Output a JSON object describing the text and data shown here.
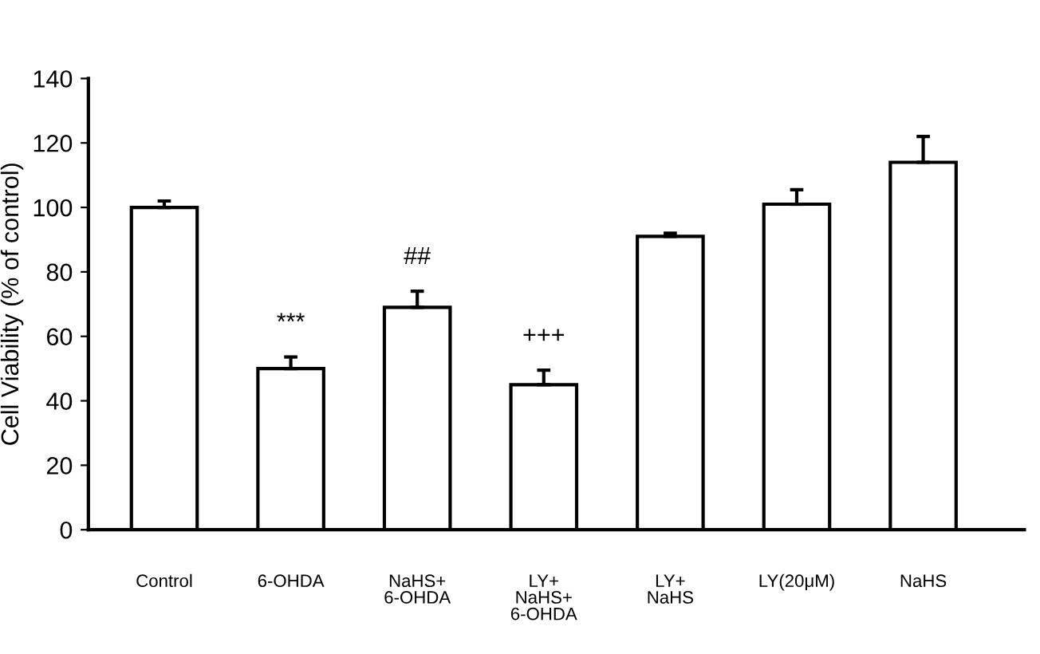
{
  "chart_data": {
    "type": "bar",
    "ylabel": "Cell Viability (% of control)",
    "categories": [
      "Control",
      "6-OHDA",
      "NaHS+\n6-OHDA",
      "LY+\nNaHS+\n6-OHDA",
      "LY+\nNaHS",
      "LY(20μM)",
      "NaHS"
    ],
    "values": [
      100,
      50,
      69,
      45,
      91,
      101,
      114
    ],
    "errors": [
      2,
      3.6,
      5,
      4.5,
      1,
      4.5,
      8
    ],
    "color": "#ffffff",
    "ylim": [
      0,
      140
    ],
    "yticks": [
      0,
      20,
      40,
      60,
      80,
      100,
      120,
      140
    ],
    "grid": false,
    "annotations": [
      "***",
      "##",
      "+++"
    ]
  }
}
